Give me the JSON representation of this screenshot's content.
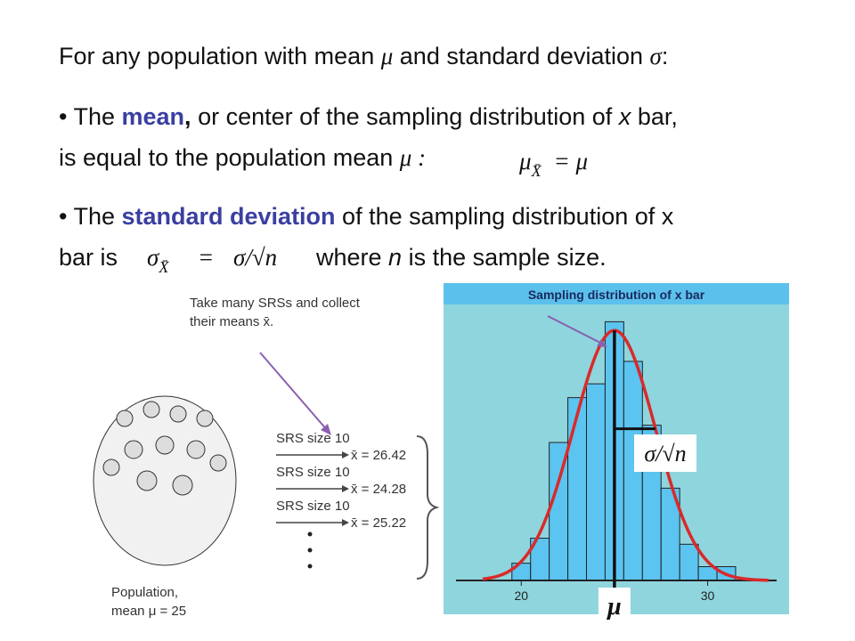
{
  "slide": {
    "intro": {
      "text": "For any population with mean ",
      "mu": "μ",
      "text2": " and standard deviation ",
      "sigma": "σ",
      "end": ":"
    },
    "bullet1": {
      "lead": "• The ",
      "key": "mean",
      "comma": ",",
      "text": " or center of the sampling distribution of ",
      "x": "x",
      "end": " bar,",
      "line2": "is equal to the population mean ",
      "mu": "μ :",
      "formula": {
        "lhs": "μ",
        "sub": "X̄",
        "rhs": "= μ"
      }
    },
    "bullet2": {
      "lead": "• The ",
      "key": "standard deviation",
      "text": " of the sampling distribution of x",
      "line2": "bar is",
      "formula": {
        "lhs": "σ",
        "sub": "X̄",
        "eq": "=",
        "rhs": "σ/√n"
      },
      "where": "where ",
      "n": "n",
      "end": " is the sample size."
    },
    "diagram": {
      "caption": [
        "Take many SRSs and collect",
        "their means x̄."
      ],
      "samples": [
        {
          "label": "SRS size 10",
          "mean": "x̄ = 26.42"
        },
        {
          "label": "SRS size 10",
          "mean": "x̄ = 24.28"
        },
        {
          "label": "SRS size 10",
          "mean": "x̄ = 25.22"
        }
      ],
      "population": [
        "Population,",
        "mean μ = 25"
      ]
    },
    "histogram": {
      "type": "histogram",
      "title": "Sampling distribution of x bar",
      "bins": [
        19.5,
        20.5,
        21.5,
        22.5,
        23.5,
        24.5,
        25.5,
        26.5,
        27.5,
        28.5,
        29.5,
        30.5,
        31.5
      ],
      "counts": [
        20,
        49,
        160,
        212,
        228,
        300,
        254,
        180,
        107,
        42,
        16,
        16
      ],
      "xlim": [
        16.5,
        33.7
      ],
      "ylim": [
        0,
        320
      ],
      "xticks": [
        20,
        30
      ],
      "curve": {
        "mean": 25,
        "sd": 2.2,
        "peak": 290
      },
      "bar_color": "#5bc4f0",
      "curve_color": "#d92a2a",
      "sd_label": "σ/√n",
      "mean_label": "μ"
    }
  }
}
